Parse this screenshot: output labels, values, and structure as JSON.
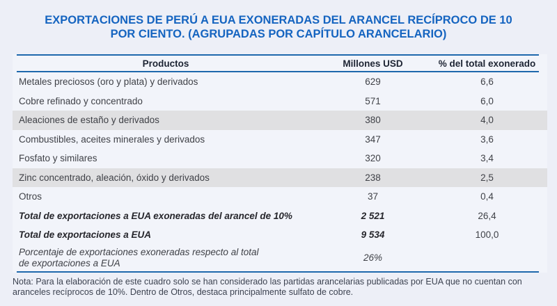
{
  "title": "EXPORTACIONES DE PERÚ A EUA EXONERADAS DEL ARANCEL RECÍPROCO DE 10 POR CIENTO. (AGRUPADAS POR CAPÍTULO ARANCELARIO)",
  "colors": {
    "page_bg": "#edeff7",
    "table_bg": "#f2f4fa",
    "stripe": "#e0e0e2",
    "rule_blue": "#1e68ac",
    "title_blue": "#1564c0",
    "header_text": "#1d2433",
    "row_text": "#3f4147",
    "total_text": "#26262c",
    "note_text": "#3c4250"
  },
  "chart_data": {
    "type": "table",
    "title": "EXPORTACIONES DE PERÚ A EUA EXONERADAS DEL ARANCEL RECÍPROCO DE 10 POR CIENTO. (AGRUPADAS POR CAPÍTULO ARANCELARIO)",
    "columns": [
      "Productos",
      "Millones USD",
      "% del total exonerado"
    ],
    "rows": [
      {
        "producto": "Metales preciosos (oro y plata) y derivados",
        "usd": "629",
        "pct": "6,6",
        "style": "normal"
      },
      {
        "producto": "Cobre refinado y concentrado",
        "usd": "571",
        "pct": "6,0",
        "style": "normal"
      },
      {
        "producto": "Aleaciones de estaño y derivados",
        "usd": "380",
        "pct": "4,0",
        "style": "gray"
      },
      {
        "producto": "Combustibles, aceites minerales y derivados",
        "usd": "347",
        "pct": "3,6",
        "style": "normal"
      },
      {
        "producto": "Fosfato y similares",
        "usd": "320",
        "pct": "3,4",
        "style": "normal"
      },
      {
        "producto": "Zinc concentrado, aleación, óxido y derivados",
        "usd": "238",
        "pct": "2,5",
        "style": "gray"
      },
      {
        "producto": "Otros",
        "usd": "37",
        "pct": "0,4",
        "style": "normal"
      },
      {
        "producto": "Total de exportaciones a EUA exoneradas del arancel de 10%",
        "usd": "2 521",
        "pct": "26,4",
        "style": "total"
      },
      {
        "producto": "Total de exportaciones a EUA",
        "usd": "9 534",
        "pct": "100,0",
        "style": "total"
      },
      {
        "producto": "Porcentaje de exportaciones exoneradas respecto al total de exportaciones a EUA",
        "usd": "26%",
        "pct": "",
        "style": "percent"
      }
    ]
  },
  "note": "Nota: Para la elaboración de este cuadro solo se han considerado las partidas arancelarias publicadas por EUA que no cuentan con aranceles recíprocos de 10%. Dentro de Otros, destaca principalmente sulfato de cobre."
}
